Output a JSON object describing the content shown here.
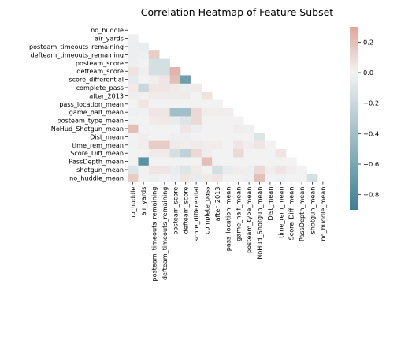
{
  "chart_data": {
    "type": "heatmap",
    "title": "Correlation Heatmap of Feature Subset",
    "mask": "upper-triangle-including-diagonal",
    "colormap": {
      "low": "#3f7f93",
      "mid": "#f2f2f2",
      "high": "#dda69b"
    },
    "color_range": [
      -0.9,
      0.3
    ],
    "colorbar_ticks": [
      0.2,
      0.0,
      -0.2,
      -0.4,
      -0.6,
      -0.8
    ],
    "colorbar_tick_labels": [
      "0.2",
      "0.0",
      "−0.2",
      "−0.4",
      "−0.6",
      "−0.8"
    ],
    "labels": [
      "no_huddle",
      "air_yards",
      "posteam_timeouts_remaining",
      "defteam_timeouts_remaining",
      "posteam_score",
      "defteam_score",
      "score_differential",
      "complete_pass",
      "after_2013",
      "pass_location_mean",
      "game_half_mean",
      "posteam_type_mean",
      "NoHud_Shotgun_mean",
      "Dist_mean",
      "time_rem_mean",
      "Score_Diff_mean",
      "PassDepth_mean",
      "shotgun_mean",
      "no_huddle_mean"
    ],
    "matrix": [
      [],
      [
        -0.02
      ],
      [
        -0.03,
        -0.04
      ],
      [
        -0.03,
        -0.02,
        0.15
      ],
      [
        -0.02,
        0.0,
        -0.15,
        -0.15
      ],
      [
        0.06,
        -0.02,
        -0.15,
        -0.15,
        0.25
      ],
      [
        -0.06,
        0.0,
        0.02,
        0.05,
        0.2,
        -0.65
      ],
      [
        0.03,
        -0.2,
        0.05,
        0.05,
        0.03,
        -0.03,
        0.03
      ],
      [
        0.02,
        0.01,
        0.03,
        0.03,
        0.03,
        0.03,
        0.0,
        0.06
      ],
      [
        0.0,
        0.05,
        0.0,
        0.0,
        0.0,
        0.0,
        0.0,
        0.0,
        0.0
      ],
      [
        -0.02,
        -0.01,
        0.05,
        0.05,
        -0.4,
        -0.4,
        0.1,
        0.02,
        0.02,
        0.02
      ],
      [
        0.0,
        0.0,
        0.03,
        0.04,
        -0.05,
        -0.1,
        0.1,
        0.0,
        0.0,
        0.0,
        0.0
      ],
      [
        0.2,
        0.0,
        0.0,
        0.0,
        0.0,
        0.05,
        -0.03,
        0.0,
        0.0,
        0.0,
        0.02,
        -0.02
      ],
      [
        0.0,
        0.02,
        0.0,
        0.0,
        -0.02,
        -0.02,
        0.0,
        0.0,
        0.0,
        0.0,
        0.0,
        0.0,
        -0.1
      ],
      [
        -0.01,
        0.02,
        0.15,
        0.15,
        0.03,
        0.02,
        0.03,
        0.02,
        0.02,
        0.0,
        0.05,
        0.02,
        0.05,
        0.0
      ],
      [
        0.0,
        0.0,
        0.03,
        0.03,
        -0.15,
        -0.25,
        0.1,
        0.02,
        0.0,
        0.0,
        0.1,
        0.0,
        0.0,
        0.0,
        0.05
      ],
      [
        0.0,
        -0.75,
        0.0,
        0.0,
        0.0,
        0.0,
        0.0,
        0.2,
        0.0,
        0.0,
        0.0,
        0.0,
        0.0,
        0.0,
        0.0,
        0.0
      ],
      [
        -0.1,
        0.0,
        0.05,
        0.05,
        -0.05,
        -0.1,
        0.03,
        0.0,
        -0.15,
        -0.05,
        0.02,
        -0.02,
        0.1,
        0.02,
        0.05,
        0.02,
        0.0
      ],
      [
        0.15,
        0.0,
        -0.02,
        0.0,
        -0.02,
        0.05,
        -0.05,
        0.03,
        0.05,
        0.0,
        0.0,
        -0.02,
        0.2,
        0.0,
        -0.02,
        0.0,
        0.0,
        -0.15
      ]
    ]
  }
}
